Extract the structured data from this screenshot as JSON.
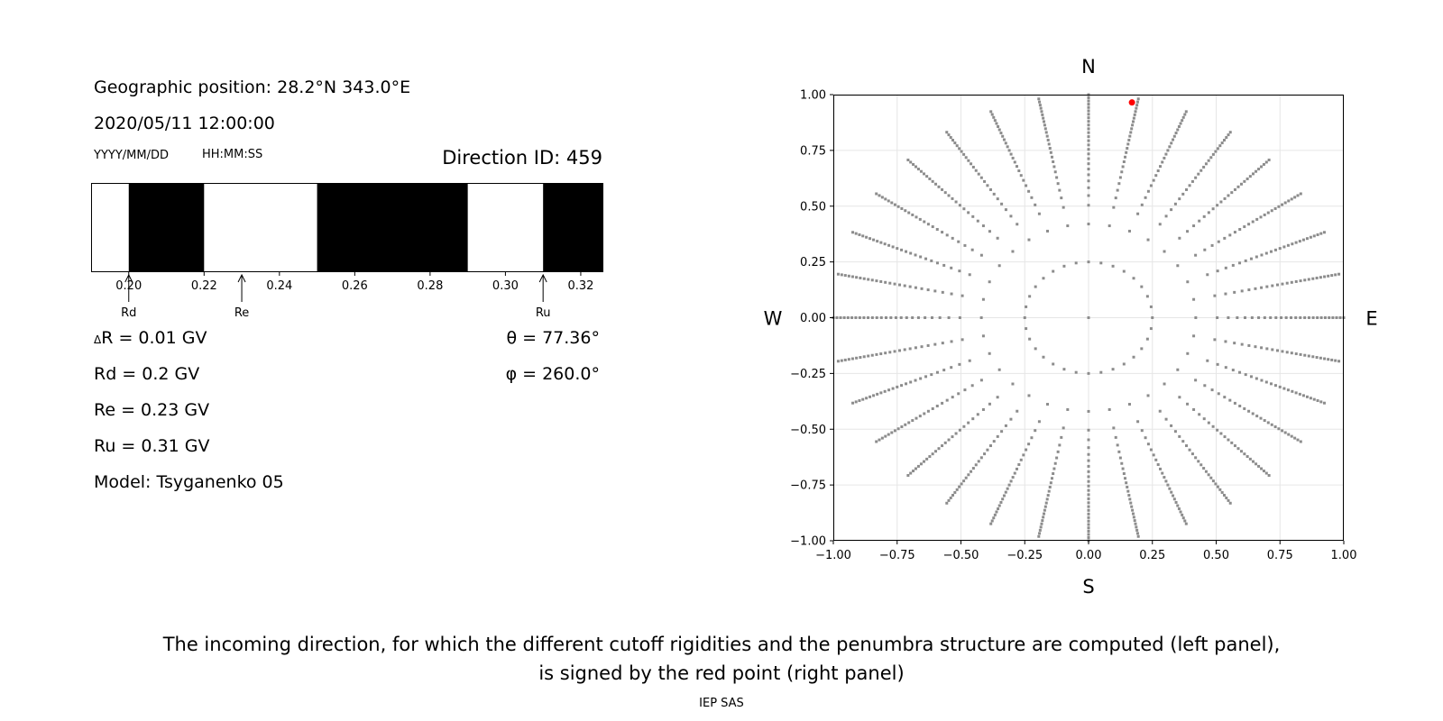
{
  "info": {
    "position_label": "Geographic position: 28.2°N 343.0°E",
    "datetime": "2020/05/11 12:00:00",
    "date_format": "YYYY/MM/DD",
    "time_format": "HH:MM:SS",
    "direction_id": "Direction ID: 459",
    "delta_r": "R = 0.01 GV",
    "delta_symbol": "Δ",
    "rd": "Rd = 0.2 GV",
    "re": "Re = 0.23 GV",
    "ru": "Ru = 0.31 GV",
    "model": "Model: Tsyganenko 05",
    "theta": "θ = 77.36°",
    "phi": "φ = 260.0°"
  },
  "caption": {
    "line1": "The incoming direction, for which the different cutoff rigidities and the penumbra structure are computed (left panel),",
    "line2": "is signed by the red point (right panel)"
  },
  "footer": "IEP SAS",
  "chart_data": [
    {
      "type": "penumbra-bar",
      "xlim": [
        0.19,
        0.326
      ],
      "xticks": [
        0.2,
        0.22,
        0.24,
        0.26,
        0.28,
        0.3,
        0.32
      ],
      "tick_labels": [
        "0.20",
        "0.22",
        "0.24",
        "0.26",
        "0.28",
        "0.30",
        "0.32"
      ],
      "forbidden_segments": [
        [
          0.2,
          0.22
        ],
        [
          0.25,
          0.29
        ],
        [
          0.31,
          0.326
        ]
      ],
      "markers": [
        {
          "label": "Rd",
          "value": 0.2
        },
        {
          "label": "Re",
          "value": 0.23
        },
        {
          "label": "Ru",
          "value": 0.31
        }
      ],
      "colors": {
        "forbidden": "#000000",
        "allowed": "#ffffff"
      }
    },
    {
      "type": "scatter",
      "xlim": [
        -1.0,
        1.0
      ],
      "ylim": [
        -1.0,
        1.0
      ],
      "xticks": [
        -1.0,
        -0.75,
        -0.5,
        -0.25,
        0.0,
        0.25,
        0.5,
        0.75,
        1.0
      ],
      "yticks": [
        -1.0,
        -0.75,
        -0.5,
        -0.25,
        0.0,
        0.25,
        0.5,
        0.75,
        1.0
      ],
      "tick_labels": [
        "−1.00",
        "−0.75",
        "−0.50",
        "−0.25",
        "0.00",
        "0.25",
        "0.50",
        "0.75",
        "1.00"
      ],
      "grid": true,
      "compass": {
        "north": "N",
        "south": "S",
        "east": "E",
        "west": "W"
      },
      "grid_pattern": {
        "inner_ring_radius": 0.25,
        "inner_ring_points": 32,
        "ring_radius_2": 0.42,
        "spoke_count": 32,
        "spoke_points": 26,
        "spoke_outer_radius": 1.0
      },
      "highlight_point": {
        "x": 0.17,
        "y": 0.965
      },
      "colors": {
        "points": "#8c8c8c",
        "highlight": "#ff0000",
        "grid": "#e6e6e6"
      }
    }
  ]
}
